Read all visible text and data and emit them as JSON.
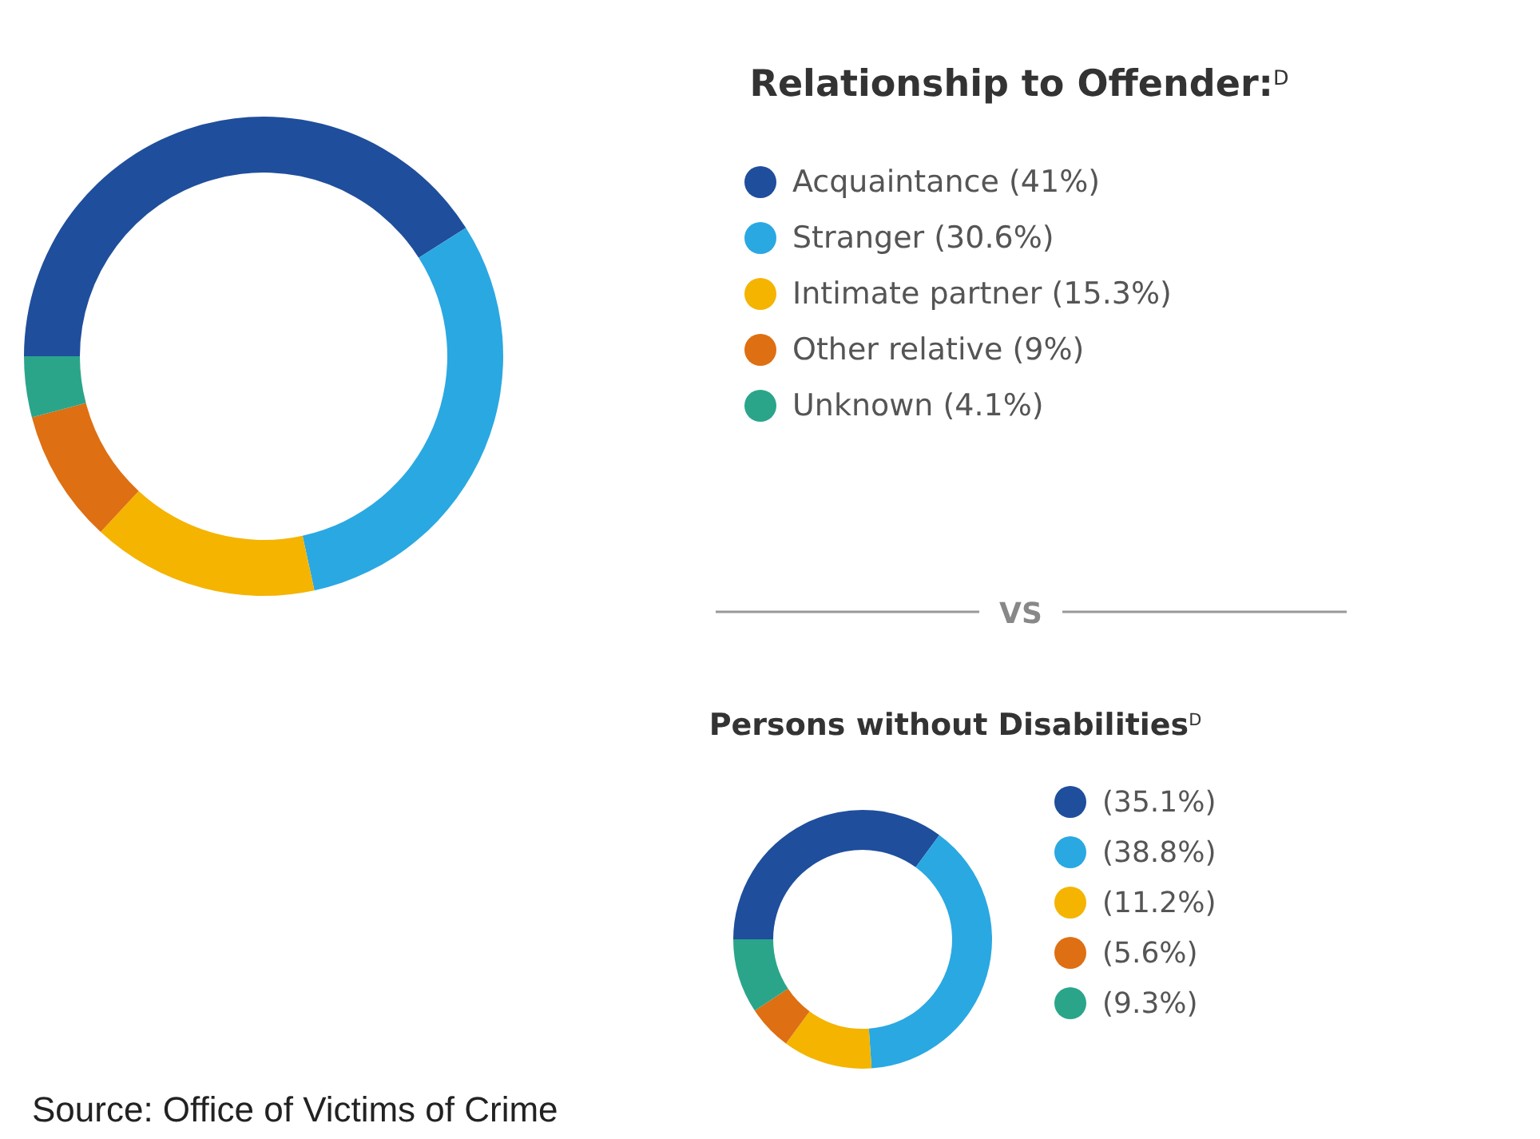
{
  "chart_data": [
    {
      "type": "donut",
      "title": "Relationship to Offender:$^{D}$",
      "categories": [
        "Acquaintance (41%)",
        "Stranger (30.6%)",
        "Intimate partner (15.3%)",
        "Other relative (9%)",
        "Unknown (4.1%)"
      ],
      "values": [
        41,
        30.6,
        15.3,
        9,
        4.1
      ],
      "colors": [
        "#1f4e9c",
        "#2aa8e2",
        "#f4b400",
        "#de6f12",
        "#2aa58a"
      ],
      "legend": "right",
      "annotations": [
        "VS"
      ]
    },
    {
      "type": "donut",
      "title": "Persons without Disabilities$^{D}$",
      "categories": [
        "(35.1%)",
        "(38.8%)",
        "(11.2%)",
        "(5.6%)",
        "(9.3%)"
      ],
      "values": [
        35.1,
        38.8,
        11.2,
        5.6,
        9.3
      ],
      "colors": [
        "#1f4e9c",
        "#2aa8e2",
        "#f4b400",
        "#de6f12",
        "#2aa58a"
      ],
      "legend": "right",
      "annotations": [
        "Source: Office of Victims of Crime"
      ]
    }
  ]
}
